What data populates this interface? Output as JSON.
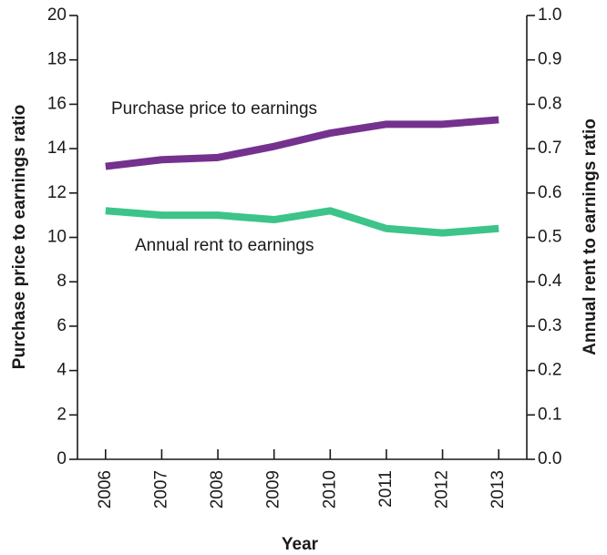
{
  "chart_data": {
    "type": "line",
    "x_label": "Year",
    "y_label": "Purchase price to earnings ratio",
    "y2_label": "Annual rent to earnings ratio",
    "categories": [
      "2006",
      "2007",
      "2008",
      "2009",
      "2010",
      "2011",
      "2012",
      "2013"
    ],
    "series": [
      {
        "name": "Purchase price to earnings",
        "color": "#74318e",
        "values": [
          13.2,
          13.5,
          13.6,
          14.1,
          14.7,
          15.1,
          15.1,
          15.3
        ]
      },
      {
        "name": "Annual rent to earnings",
        "color": "#3cc48a",
        "axis": "y2",
        "values": [
          0.56,
          0.55,
          0.55,
          0.54,
          0.56,
          0.52,
          0.51,
          0.52
        ]
      }
    ],
    "ylim": [
      0,
      20
    ],
    "yticks": [
      0,
      2,
      4,
      6,
      8,
      10,
      12,
      14,
      16,
      18,
      20
    ],
    "y2lim": [
      0,
      1
    ],
    "y2ticks": [
      {
        "value": 0,
        "label": "0.0"
      },
      0.1,
      0.2,
      0.3,
      0.4,
      0.5,
      0.6,
      0.7,
      0.8,
      0.9,
      {
        "value": 1,
        "label": "1.0"
      }
    ],
    "grid": false
  }
}
